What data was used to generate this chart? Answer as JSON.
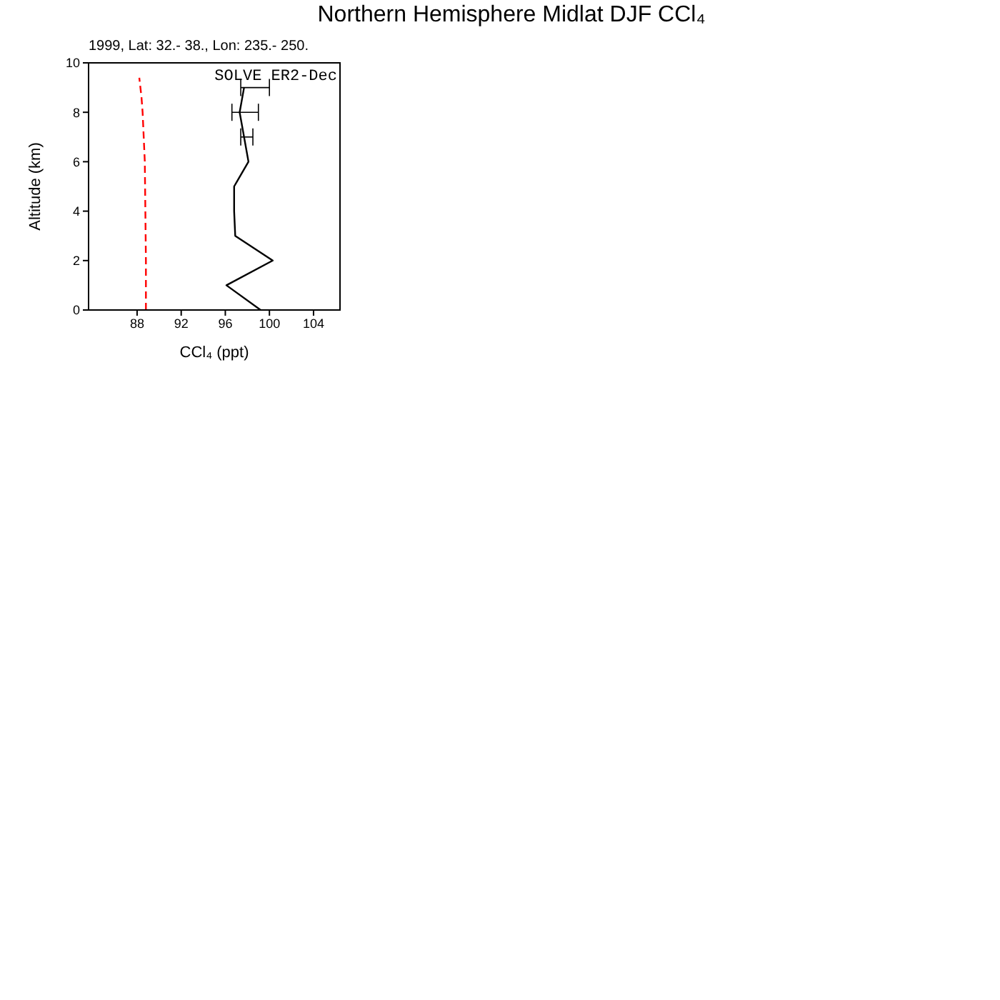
{
  "chart_data": {
    "type": "line",
    "title": "Northern Hemisphere Midlat DJF CCl₄",
    "subtitle": "1999, Lat: 32.- 38., Lon: 235.- 250.",
    "xlabel": "CCl₄ (ppt)",
    "ylabel": "Altitude (km)",
    "xlim": [
      83.6,
      106.4
    ],
    "xticks": [
      88,
      92,
      96,
      100,
      104
    ],
    "ylim": [
      0,
      10
    ],
    "yticks": [
      0,
      2,
      4,
      6,
      8,
      10
    ],
    "legend": "top right",
    "marker": "none",
    "series": [
      {
        "name": "SOLVE ER2-Dec",
        "color": "#000000",
        "line_style": "solid",
        "x": [
          99.2,
          96.1,
          100.3,
          96.9,
          96.8,
          96.8,
          98.1,
          97.7,
          97.3,
          97.7
        ],
        "values": [
          0,
          1,
          2,
          3,
          4,
          5,
          6,
          7,
          8,
          9
        ],
        "xerrors": [
          null,
          null,
          null,
          null,
          null,
          null,
          null,
          [
            97.4,
            98.5
          ],
          [
            96.6,
            99.0
          ],
          [
            97.4,
            100.0
          ]
        ]
      },
      {
        "color": "#ff0000",
        "line_style": "dashed",
        "x": [
          88.8,
          88.8,
          88.75,
          88.7,
          88.6,
          88.5,
          88.4,
          88.2
        ],
        "values": [
          0,
          2,
          4,
          6,
          7,
          8,
          8.6,
          9.4
        ]
      }
    ]
  }
}
